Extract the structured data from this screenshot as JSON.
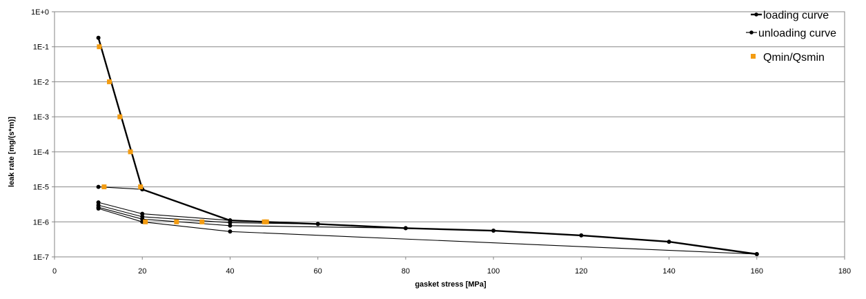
{
  "chart_data": {
    "type": "line",
    "title": "",
    "xlabel": "gasket stress [MPa]",
    "ylabel": "leak rate [mg/(s*m)]",
    "xlim": [
      0,
      180
    ],
    "xticks": [
      0,
      20,
      40,
      60,
      80,
      100,
      120,
      140,
      160,
      180
    ],
    "y_scale": "log",
    "ylim": [
      1e-07,
      1
    ],
    "ytick_labels": [
      "1E-7",
      "1E-6",
      "1E-5",
      "1E-4",
      "1E-3",
      "1E-2",
      "1E-1",
      "1E+0"
    ],
    "grid": "horizontal major gridlines",
    "legend_position": "top-right",
    "series": [
      {
        "name": "loading curve",
        "style": "line-with-markers",
        "color": "#000000",
        "x": [
          10,
          20,
          40,
          60,
          80,
          100,
          120,
          140,
          160
        ],
        "y": [
          0.18,
          8.5e-06,
          1.1e-06,
          8.7e-07,
          6.6e-07,
          5.6e-07,
          4.1e-07,
          2.7e-07,
          1.2e-07
        ]
      },
      {
        "name": "unloading curve",
        "style": "line-with-markers",
        "color": "#000000",
        "segments": [
          {
            "x": [
              20,
              10
            ],
            "y": [
              8.5e-06,
              1e-05
            ]
          },
          {
            "x": [
              40,
              20,
              10
            ],
            "y": [
              1.1e-06,
              1.7e-06,
              3.6e-06
            ]
          },
          {
            "x": [
              60,
              40,
              20,
              10
            ],
            "y": [
              8.7e-07,
              9.5e-07,
              1.4e-06,
              3e-06
            ]
          },
          {
            "x": [
              80,
              40,
              20,
              10
            ],
            "y": [
              6.6e-07,
              7.8e-07,
              1.2e-06,
              2.6e-06
            ]
          },
          {
            "x": [
              160,
              40,
              20,
              10
            ],
            "y": [
              1.2e-07,
              5.3e-07,
              1e-06,
              2.4e-06
            ]
          }
        ]
      },
      {
        "name": "Qmin/Qsmin",
        "style": "markers",
        "color": "#F39C12",
        "x": [
          10.2,
          12.5,
          14.9,
          17.3,
          19.6,
          11.3,
          20.7,
          27.8,
          33.6,
          47.8,
          48.3
        ],
        "y": [
          0.1,
          0.01,
          0.001,
          0.0001,
          1e-05,
          1e-05,
          1e-06,
          1e-06,
          1e-06,
          1e-06,
          1e-06
        ]
      }
    ]
  }
}
